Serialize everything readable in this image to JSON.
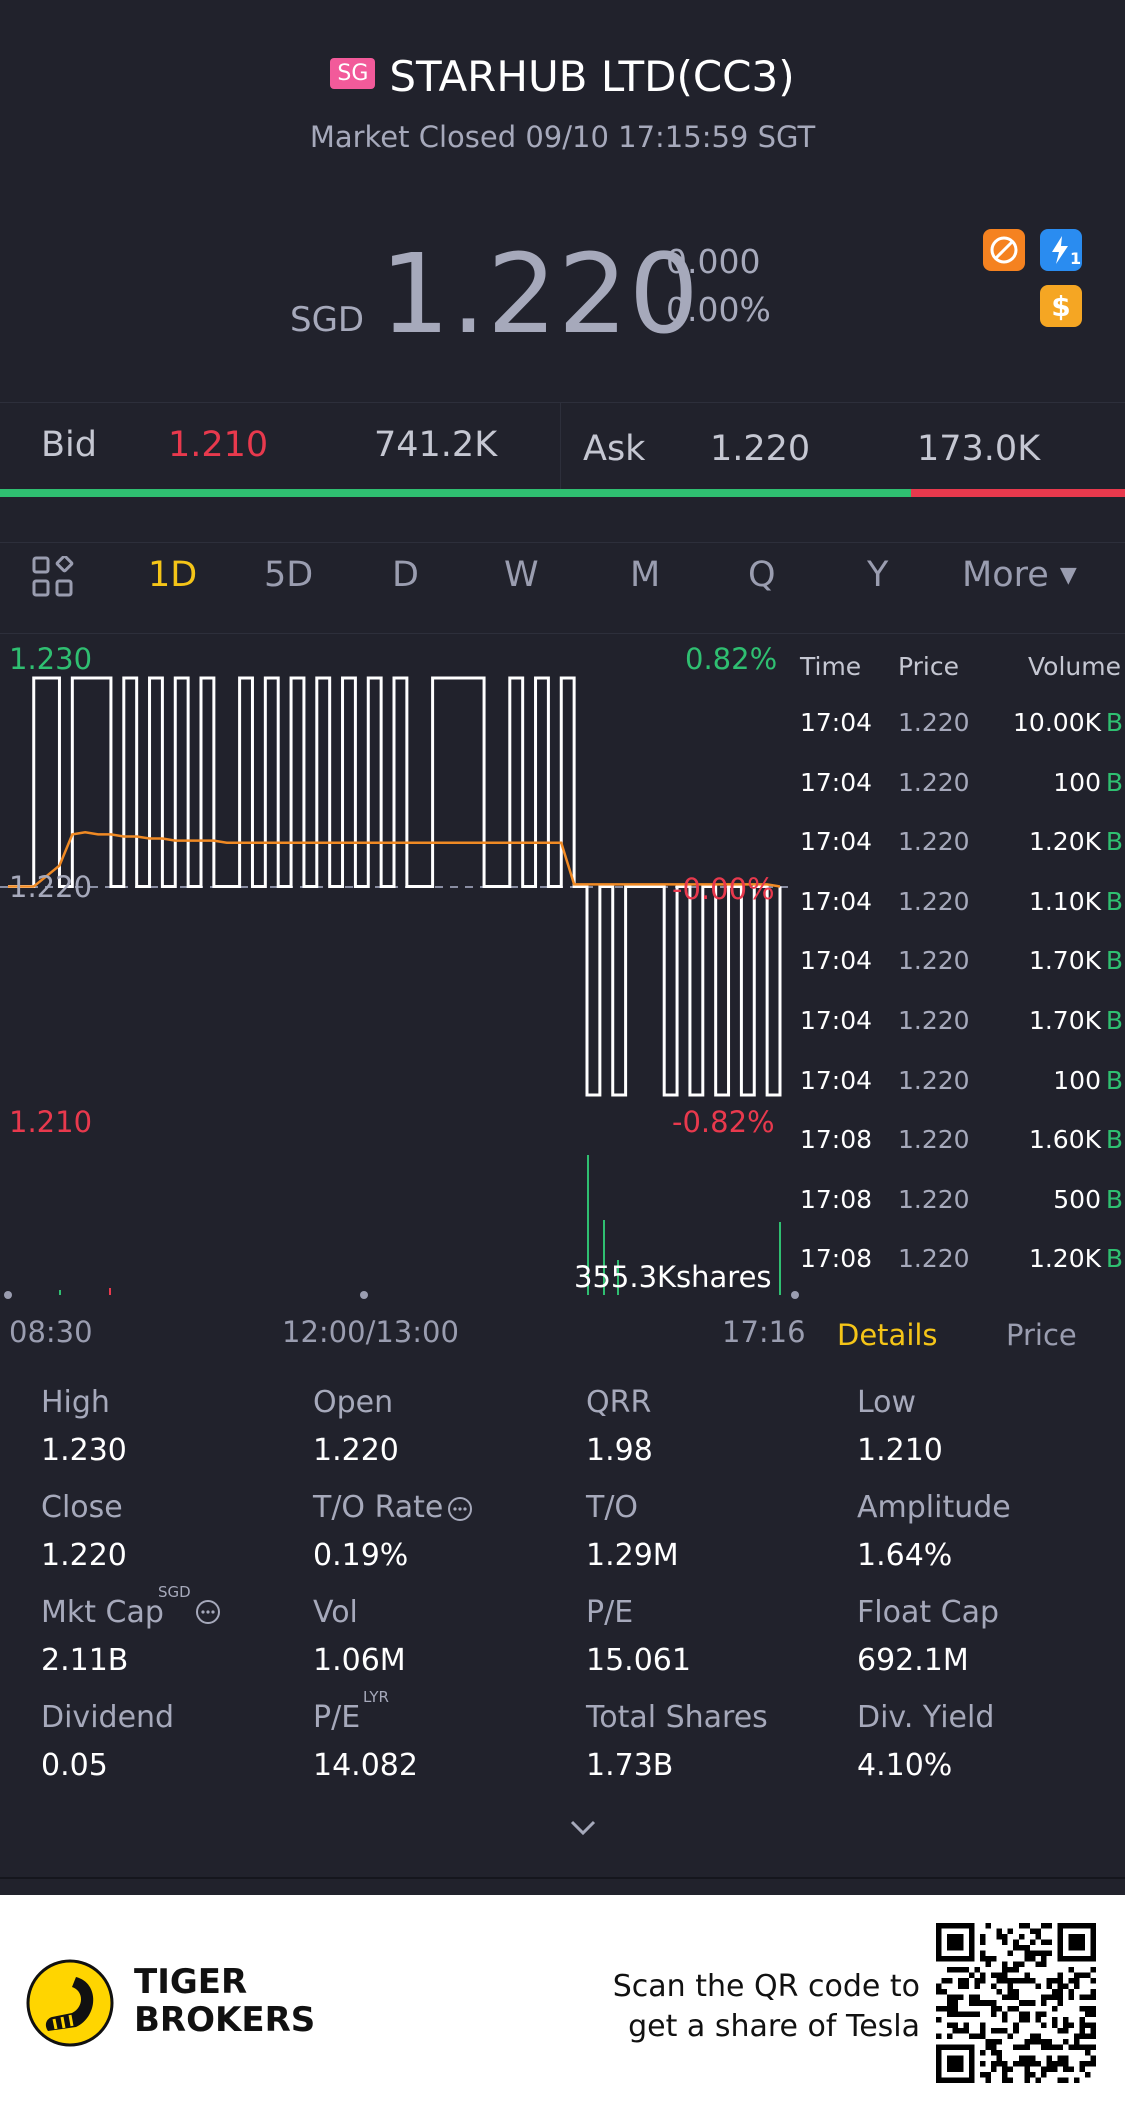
{
  "header": {
    "market_badge": "SG",
    "title": "STARHUB LTD(CC3)",
    "status": "Market Closed 09/10 17:15:59 SGT"
  },
  "quote": {
    "currency": "SGD",
    "price": "1.220",
    "change": "0.000",
    "change_pct": "0.00%",
    "badge_icons": [
      "no-short-icon",
      "lightning-icon",
      "dollar-icon"
    ],
    "lightning_sub": "1"
  },
  "bid_ask": {
    "bid_label": "Bid",
    "bid_price": "1.210",
    "bid_size": "741.2K",
    "ask_label": "Ask",
    "ask_price": "1.220",
    "ask_size": "173.0K",
    "bid_fraction": 0.81,
    "bid_color": "#2fbf71",
    "ask_color": "#e8394d"
  },
  "period_tabs": {
    "items": [
      "1D",
      "5D",
      "D",
      "W",
      "M",
      "Q",
      "Y"
    ],
    "active": "1D",
    "more_label": "More"
  },
  "chart_labels": {
    "y_top": "1.230",
    "y_mid": "1.220",
    "y_bottom": "1.210",
    "pct_top": "0.82%",
    "pct_mid": "-0.00%",
    "pct_bottom": "-0.82%",
    "volume_label": "355.3Kshares",
    "x_start": "08:30",
    "x_mid": "12:00/13:00",
    "x_end": "17:16"
  },
  "chart_data": {
    "type": "line",
    "ylim": [
      1.21,
      1.23
    ],
    "prev_close": 1.22,
    "series": [
      {
        "values": [
          1.22,
          1.22,
          1.23,
          1.23,
          1.22,
          1.23,
          1.23,
          1.23,
          1.22,
          1.23,
          1.22,
          1.23,
          1.22,
          1.23,
          1.22,
          1.23,
          1.22,
          1.22,
          1.23,
          1.22,
          1.23,
          1.22,
          1.23,
          1.22,
          1.23,
          1.22,
          1.23,
          1.22,
          1.23,
          1.22,
          1.23,
          1.22,
          1.22,
          1.23,
          1.23,
          1.23,
          1.23,
          1.22,
          1.22,
          1.23,
          1.22,
          1.23,
          1.22,
          1.23,
          1.22,
          1.21,
          1.22,
          1.21,
          1.22,
          1.22,
          1.22,
          1.21,
          1.22,
          1.21,
          1.22,
          1.21,
          1.22,
          1.21,
          1.22,
          1.21,
          1.22
        ]
      },
      {
        "values": [
          1.22,
          1.22,
          1.22,
          1.2205,
          1.221,
          1.2225,
          1.2226,
          1.2225,
          1.2225,
          1.2224,
          1.2224,
          1.2223,
          1.2223,
          1.2222,
          1.2222,
          1.2222,
          1.2222,
          1.2221,
          1.2221,
          1.2221,
          1.2221,
          1.2221,
          1.2221,
          1.2221,
          1.2221,
          1.2221,
          1.2221,
          1.2221,
          1.2221,
          1.2221,
          1.2221,
          1.2221,
          1.2221,
          1.2221,
          1.2221,
          1.2221,
          1.2221,
          1.2221,
          1.2221,
          1.2221,
          1.2221,
          1.2221,
          1.2221,
          1.2221,
          1.2201,
          1.2201,
          1.2201,
          1.2201,
          1.2201,
          1.2201,
          1.2201,
          1.2201,
          1.2201,
          1.2201,
          1.2201,
          1.2201,
          1.2201,
          1.2201,
          1.2201,
          1.2201,
          1.22
        ]
      }
    ]
  },
  "ticks": {
    "headers": [
      "Time",
      "Price",
      "Volume"
    ],
    "rows": [
      {
        "time": "17:04",
        "price": "1.220",
        "volume": "10.00K",
        "side": "B"
      },
      {
        "time": "17:04",
        "price": "1.220",
        "volume": "100",
        "side": "B"
      },
      {
        "time": "17:04",
        "price": "1.220",
        "volume": "1.20K",
        "side": "B"
      },
      {
        "time": "17:04",
        "price": "1.220",
        "volume": "1.10K",
        "side": "B"
      },
      {
        "time": "17:04",
        "price": "1.220",
        "volume": "1.70K",
        "side": "B"
      },
      {
        "time": "17:04",
        "price": "1.220",
        "volume": "1.70K",
        "side": "B"
      },
      {
        "time": "17:04",
        "price": "1.220",
        "volume": "100",
        "side": "B"
      },
      {
        "time": "17:08",
        "price": "1.220",
        "volume": "1.60K",
        "side": "B"
      },
      {
        "time": "17:08",
        "price": "1.220",
        "volume": "500",
        "side": "B"
      },
      {
        "time": "17:08",
        "price": "1.220",
        "volume": "1.20K",
        "side": "B"
      }
    ],
    "tab_details": "Details",
    "tab_price": "Price"
  },
  "stats": [
    {
      "label": "High",
      "value": "1.230"
    },
    {
      "label": "Open",
      "value": "1.220"
    },
    {
      "label": "QRR",
      "value": "1.98"
    },
    {
      "label": "Low",
      "value": "1.210"
    },
    {
      "label": "Close",
      "value": "1.220"
    },
    {
      "label": "T/O Rate",
      "value": "0.19%",
      "info": true
    },
    {
      "label": "T/O",
      "value": "1.29M"
    },
    {
      "label": "Amplitude",
      "value": "1.64%"
    },
    {
      "label": "Mkt Cap",
      "value": "2.11B",
      "sup": "SGD",
      "info": true
    },
    {
      "label": "Vol",
      "value": "1.06M"
    },
    {
      "label": "P/E",
      "value": "15.061"
    },
    {
      "label": "Float Cap",
      "value": "692.1M"
    },
    {
      "label": "Dividend",
      "value": "0.05"
    },
    {
      "label": "P/E",
      "value": "14.082",
      "sup": "LYR"
    },
    {
      "label": "Total Shares",
      "value": "1.73B"
    },
    {
      "label": "Div. Yield",
      "value": "4.10%"
    }
  ],
  "footer": {
    "brand_line1": "TIGER",
    "brand_line2": "BROKERS",
    "promo_line1": "Scan the QR code to",
    "promo_line2": "get a share of Tesla"
  },
  "colors": {
    "background": "#21222c",
    "up": "#2fbf71",
    "down": "#e8394d",
    "accent": "#f5c518",
    "avg_line": "#f08a24"
  }
}
